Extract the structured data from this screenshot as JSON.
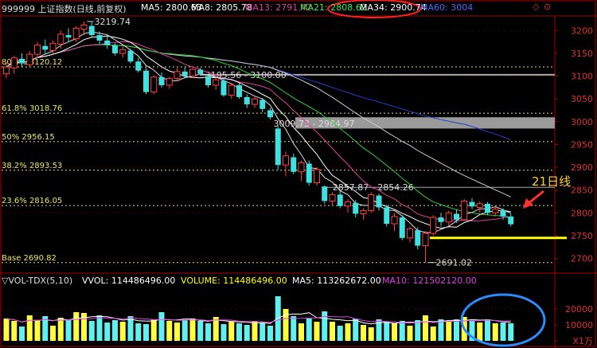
{
  "header": {
    "title": "999999 上证指数(日线,前复权)",
    "ma_items": [
      {
        "label": "MA5: 2800.63",
        "color": "#ffffff"
      },
      {
        "label": "MA8: 2805.78",
        "color": "#ffffff"
      },
      {
        "label": "MA13: 2791.42",
        "color": "#e0409a"
      },
      {
        "label": "MA21: 2808.62",
        "color": "#33ee44"
      },
      {
        "label": "MA34: 2900.74",
        "color": "#ffffff"
      },
      {
        "label": "MA60: 3004",
        "color": "#4a6bff"
      }
    ],
    "window_controls": [
      "◇",
      "⊙"
    ]
  },
  "volume_header": {
    "title": "▽VOL-TDX(5,10)",
    "items": [
      {
        "label": "VVOL: 114486496.00",
        "color": "#ffffff"
      },
      {
        "label": "VOLUME: 114486496.00",
        "color": "#ffff00"
      },
      {
        "label": "MA5: 113262672.00",
        "color": "#ffffff"
      },
      {
        "label": "MA10: 121502120.00",
        "color": "#e040e0"
      }
    ]
  },
  "annotations": {
    "ma21_callout": "21日线",
    "peak_label": "3219.74",
    "low_label": "2691.02",
    "gap1_label": "3105.56 - 3100.00",
    "gap2_label": "3009.73 - 2984.97",
    "gap3_label": "2857.87 - 2854.26"
  },
  "fib_levels": [
    {
      "label": "80.9% 3120.12",
      "value": 3120.12
    },
    {
      "label": "61.8% 3018.76",
      "value": 3018.76
    },
    {
      "label": "50% 2956.15",
      "value": 2956.15
    },
    {
      "label": "38.2% 2893.53",
      "value": 2893.53
    },
    {
      "label": "23.6% 2816.05",
      "value": 2816.05
    },
    {
      "label": "Base 2690.82",
      "value": 2690.82
    }
  ],
  "chart_data": [
    {
      "type": "candlestick",
      "title": "999999 上证指数(日线,前复权)",
      "y_ticks": [
        3200,
        3100,
        3000,
        2900,
        2800,
        2700
      ],
      "y_tick_labels": [
        "3200",
        "3150",
        "3100",
        "3050",
        "3000",
        "2950",
        "2900",
        "2850",
        "2800",
        "2750",
        "2700"
      ],
      "ylim": [
        2680,
        3225
      ],
      "candles": [
        {
          "o": 3105,
          "h": 3130,
          "l": 3095,
          "c": 3120
        },
        {
          "o": 3118,
          "h": 3145,
          "l": 3105,
          "c": 3140
        },
        {
          "o": 3138,
          "h": 3150,
          "l": 3120,
          "c": 3128
        },
        {
          "o": 3125,
          "h": 3155,
          "l": 3118,
          "c": 3148
        },
        {
          "o": 3148,
          "h": 3175,
          "l": 3140,
          "c": 3168
        },
        {
          "o": 3166,
          "h": 3180,
          "l": 3150,
          "c": 3158
        },
        {
          "o": 3156,
          "h": 3178,
          "l": 3148,
          "c": 3172
        },
        {
          "o": 3170,
          "h": 3200,
          "l": 3160,
          "c": 3192
        },
        {
          "o": 3190,
          "h": 3205,
          "l": 3175,
          "c": 3185
        },
        {
          "o": 3182,
          "h": 3210,
          "l": 3175,
          "c": 3205
        },
        {
          "o": 3203,
          "h": 3219.74,
          "l": 3190,
          "c": 3212
        },
        {
          "o": 3210,
          "h": 3218,
          "l": 3185,
          "c": 3190
        },
        {
          "o": 3190,
          "h": 3198,
          "l": 3170,
          "c": 3178
        },
        {
          "o": 3178,
          "h": 3190,
          "l": 3160,
          "c": 3168
        },
        {
          "o": 3168,
          "h": 3172,
          "l": 3145,
          "c": 3150
        },
        {
          "o": 3150,
          "h": 3165,
          "l": 3140,
          "c": 3158
        },
        {
          "o": 3156,
          "h": 3160,
          "l": 3128,
          "c": 3132
        },
        {
          "o": 3132,
          "h": 3140,
          "l": 3108,
          "c": 3112
        },
        {
          "o": 3112,
          "h": 3118,
          "l": 3060,
          "c": 3065
        },
        {
          "o": 3065,
          "h": 3102,
          "l": 3060,
          "c": 3098
        },
        {
          "o": 3098,
          "h": 3108,
          "l": 3075,
          "c": 3080
        },
        {
          "o": 3080,
          "h": 3098,
          "l": 3072,
          "c": 3095
        },
        {
          "o": 3095,
          "h": 3118,
          "l": 3088,
          "c": 3110
        },
        {
          "o": 3110,
          "h": 3120,
          "l": 3095,
          "c": 3100
        },
        {
          "o": 3100,
          "h": 3118,
          "l": 3095,
          "c": 3115
        },
        {
          "o": 3114,
          "h": 3118,
          "l": 3100,
          "c": 3105.56
        },
        {
          "o": 3100,
          "h": 3102,
          "l": 3075,
          "c": 3080
        },
        {
          "o": 3080,
          "h": 3098,
          "l": 3070,
          "c": 3092
        },
        {
          "o": 3090,
          "h": 3095,
          "l": 3055,
          "c": 3058
        },
        {
          "o": 3058,
          "h": 3085,
          "l": 3050,
          "c": 3080
        },
        {
          "o": 3080,
          "h": 3085,
          "l": 3050,
          "c": 3054
        },
        {
          "o": 3054,
          "h": 3060,
          "l": 3030,
          "c": 3038
        },
        {
          "o": 3038,
          "h": 3055,
          "l": 3030,
          "c": 3050
        },
        {
          "o": 3048,
          "h": 3052,
          "l": 3020,
          "c": 3028
        },
        {
          "o": 3025,
          "h": 3030,
          "l": 3005,
          "c": 3009.73
        },
        {
          "o": 2984.97,
          "h": 2990,
          "l": 2895,
          "c": 2905
        },
        {
          "o": 2905,
          "h": 2935,
          "l": 2880,
          "c": 2925
        },
        {
          "o": 2922,
          "h": 2930,
          "l": 2885,
          "c": 2890
        },
        {
          "o": 2890,
          "h": 2915,
          "l": 2870,
          "c": 2910
        },
        {
          "o": 2908,
          "h": 2915,
          "l": 2860,
          "c": 2866
        },
        {
          "o": 2866,
          "h": 2900,
          "l": 2860,
          "c": 2895
        },
        {
          "o": 2857.87,
          "h": 2860,
          "l": 2820,
          "c": 2826
        },
        {
          "o": 2826,
          "h": 2845,
          "l": 2815,
          "c": 2840
        },
        {
          "o": 2840,
          "h": 2848,
          "l": 2810,
          "c": 2815
        },
        {
          "o": 2815,
          "h": 2830,
          "l": 2800,
          "c": 2824
        },
        {
          "o": 2822,
          "h": 2828,
          "l": 2790,
          "c": 2798
        },
        {
          "o": 2798,
          "h": 2810,
          "l": 2785,
          "c": 2805
        },
        {
          "o": 2805,
          "h": 2845,
          "l": 2800,
          "c": 2840
        },
        {
          "o": 2838,
          "h": 2842,
          "l": 2805,
          "c": 2812
        },
        {
          "o": 2812,
          "h": 2818,
          "l": 2770,
          "c": 2776
        },
        {
          "o": 2776,
          "h": 2800,
          "l": 2760,
          "c": 2792
        },
        {
          "o": 2790,
          "h": 2795,
          "l": 2740,
          "c": 2745
        },
        {
          "o": 2745,
          "h": 2770,
          "l": 2735,
          "c": 2765
        },
        {
          "o": 2762,
          "h": 2768,
          "l": 2720,
          "c": 2728
        },
        {
          "o": 2728,
          "h": 2760,
          "l": 2691.02,
          "c": 2755
        },
        {
          "o": 2755,
          "h": 2795,
          "l": 2750,
          "c": 2790
        },
        {
          "o": 2790,
          "h": 2800,
          "l": 2770,
          "c": 2780
        },
        {
          "o": 2780,
          "h": 2805,
          "l": 2772,
          "c": 2800
        },
        {
          "o": 2798,
          "h": 2808,
          "l": 2778,
          "c": 2785
        },
        {
          "o": 2785,
          "h": 2830,
          "l": 2782,
          "c": 2826
        },
        {
          "o": 2824,
          "h": 2832,
          "l": 2808,
          "c": 2814
        },
        {
          "o": 2812,
          "h": 2825,
          "l": 2800,
          "c": 2820
        },
        {
          "o": 2820,
          "h": 2824,
          "l": 2795,
          "c": 2800
        },
        {
          "o": 2800,
          "h": 2815,
          "l": 2792,
          "c": 2808
        },
        {
          "o": 2806,
          "h": 2810,
          "l": 2785,
          "c": 2792
        },
        {
          "o": 2792,
          "h": 2798,
          "l": 2770,
          "c": 2775
        }
      ]
    },
    {
      "type": "bar",
      "title": "VOL-TDX(5,10)",
      "y_tick_labels": [
        "20000",
        "10000",
        "X1万"
      ],
      "ylim": [
        0,
        34000
      ],
      "values": [
        14000,
        12500,
        9000,
        16000,
        13000,
        15500,
        9500,
        14500,
        13000,
        18000,
        17500,
        12500,
        16000,
        11500,
        13000,
        12000,
        15500,
        11000,
        10500,
        13500,
        18000,
        12500,
        11500,
        13000,
        14000,
        12500,
        11000,
        15000,
        10500,
        12000,
        11000,
        10000,
        12500,
        11500,
        9500,
        28000,
        20000,
        15500,
        11000,
        14000,
        12000,
        18500,
        12000,
        9500,
        11000,
        14000,
        10000,
        8500,
        13500,
        12000,
        11000,
        12500,
        9500,
        13000,
        16000,
        9000,
        13500,
        12500,
        13500,
        15000,
        12500,
        11500,
        13500,
        11000,
        11500,
        11000
      ],
      "ma5_color": "#ffffff",
      "ma10_color": "#e040e0"
    }
  ]
}
